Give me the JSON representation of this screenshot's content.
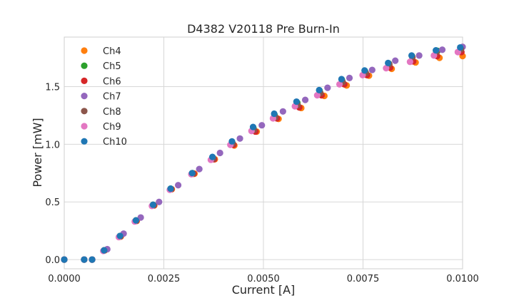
{
  "chart_data": {
    "type": "scatter",
    "title": "D4382 V20118 Pre Burn-In",
    "xlabel": "Current [A]",
    "ylabel": "Power [mW]",
    "xlim": [
      0.0,
      0.01
    ],
    "ylim": [
      -0.08,
      1.93
    ],
    "xticks": [
      0.0,
      0.0025,
      0.005,
      0.0075,
      0.01
    ],
    "xtick_labels": [
      "0.0000",
      "0.0025",
      "0.0050",
      "0.0075",
      "0.0100"
    ],
    "yticks": [
      0.0,
      0.5,
      1.0,
      1.5
    ],
    "ytick_labels": [
      "0.0",
      "0.5",
      "1.0",
      "1.5"
    ],
    "grid": true,
    "legend_position": "top-left",
    "series": [
      {
        "name": "Ch4",
        "color": "#ff7f0e",
        "points": [
          [
            0.0,
            0.0
          ],
          [
            0.0005,
            0.0
          ],
          [
            0.0007,
            0.0
          ],
          [
            0.00102,
            0.08
          ],
          [
            0.00142,
            0.2
          ],
          [
            0.00182,
            0.335
          ],
          [
            0.00226,
            0.47
          ],
          [
            0.0027,
            0.61
          ],
          [
            0.00327,
            0.745
          ],
          [
            0.00378,
            0.87
          ],
          [
            0.00427,
            0.99
          ],
          [
            0.00483,
            1.11
          ],
          [
            0.00538,
            1.22
          ],
          [
            0.00595,
            1.315
          ],
          [
            0.00653,
            1.42
          ],
          [
            0.00709,
            1.51
          ],
          [
            0.00765,
            1.595
          ],
          [
            0.00822,
            1.655
          ],
          [
            0.00882,
            1.71
          ],
          [
            0.00942,
            1.75
          ],
          [
            0.01,
            1.765
          ]
        ]
      },
      {
        "name": "Ch5",
        "color": "#2ca02c",
        "points": [
          [
            0.0,
            0.0
          ],
          [
            0.0005,
            0.0
          ],
          [
            0.0007,
            0.0
          ],
          [
            0.001,
            0.08
          ],
          [
            0.0014,
            0.205
          ],
          [
            0.0018,
            0.34
          ],
          [
            0.00223,
            0.475
          ],
          [
            0.00267,
            0.615
          ],
          [
            0.00322,
            0.75
          ],
          [
            0.00373,
            0.885
          ],
          [
            0.00422,
            1.015
          ],
          [
            0.00475,
            1.14
          ],
          [
            0.00528,
            1.255
          ],
          [
            0.00585,
            1.36
          ],
          [
            0.00641,
            1.465
          ],
          [
            0.00697,
            1.56
          ],
          [
            0.00755,
            1.635
          ],
          [
            0.00815,
            1.7
          ],
          [
            0.00873,
            1.765
          ],
          [
            0.00937,
            1.81
          ],
          [
            0.00995,
            1.835
          ]
        ]
      },
      {
        "name": "Ch6",
        "color": "#d62728",
        "points": [
          [
            0.0,
            0.0
          ],
          [
            0.0005,
            0.0
          ],
          [
            0.0007,
            0.0
          ],
          [
            0.00101,
            0.08
          ],
          [
            0.00141,
            0.2
          ],
          [
            0.00181,
            0.335
          ],
          [
            0.00225,
            0.47
          ],
          [
            0.00269,
            0.61
          ],
          [
            0.00325,
            0.745
          ],
          [
            0.00376,
            0.87
          ],
          [
            0.00425,
            0.995
          ],
          [
            0.0048,
            1.11
          ],
          [
            0.00534,
            1.225
          ],
          [
            0.0059,
            1.32
          ],
          [
            0.00646,
            1.425
          ],
          [
            0.00703,
            1.52
          ],
          [
            0.0076,
            1.6
          ],
          [
            0.00818,
            1.665
          ],
          [
            0.00876,
            1.72
          ],
          [
            0.00936,
            1.765
          ],
          [
            0.00997,
            1.8
          ]
        ]
      },
      {
        "name": "Ch7",
        "color": "#9467bd",
        "points": [
          [
            0.0,
            0.0
          ],
          [
            0.0005,
            0.0
          ],
          [
            0.0007,
            0.0
          ],
          [
            0.00108,
            0.09
          ],
          [
            0.00149,
            0.225
          ],
          [
            0.00192,
            0.365
          ],
          [
            0.00238,
            0.5
          ],
          [
            0.00286,
            0.645
          ],
          [
            0.00339,
            0.785
          ],
          [
            0.00391,
            0.925
          ],
          [
            0.00441,
            1.05
          ],
          [
            0.00496,
            1.165
          ],
          [
            0.00549,
            1.285
          ],
          [
            0.00605,
            1.385
          ],
          [
            0.00661,
            1.49
          ],
          [
            0.00716,
            1.575
          ],
          [
            0.00773,
            1.645
          ],
          [
            0.00831,
            1.725
          ],
          [
            0.00891,
            1.77
          ],
          [
            0.00949,
            1.82
          ],
          [
            0.01,
            1.845
          ]
        ]
      },
      {
        "name": "Ch8",
        "color": "#8c564b",
        "points": [
          [
            0.0,
            0.0
          ],
          [
            0.0005,
            0.0
          ],
          [
            0.0007,
            0.0
          ],
          [
            0.001,
            0.08
          ],
          [
            0.0014,
            0.2
          ],
          [
            0.0018,
            0.335
          ],
          [
            0.00224,
            0.47
          ],
          [
            0.00268,
            0.61
          ],
          [
            0.00323,
            0.745
          ],
          [
            0.00374,
            0.875
          ],
          [
            0.00423,
            1.005
          ],
          [
            0.00476,
            1.125
          ],
          [
            0.0053,
            1.235
          ],
          [
            0.00586,
            1.34
          ],
          [
            0.00643,
            1.445
          ],
          [
            0.00699,
            1.54
          ],
          [
            0.00757,
            1.62
          ],
          [
            0.00816,
            1.695
          ],
          [
            0.00874,
            1.755
          ],
          [
            0.00934,
            1.8
          ],
          [
            0.00996,
            1.825
          ]
        ]
      },
      {
        "name": "Ch9",
        "color": "#e377c2",
        "points": [
          [
            0.0,
            0.0
          ],
          [
            0.0005,
            0.0
          ],
          [
            0.0007,
            0.0
          ],
          [
            0.00098,
            0.075
          ],
          [
            0.00137,
            0.195
          ],
          [
            0.00177,
            0.33
          ],
          [
            0.0022,
            0.465
          ],
          [
            0.00265,
            0.605
          ],
          [
            0.00319,
            0.74
          ],
          [
            0.00368,
            0.865
          ],
          [
            0.00417,
            0.995
          ],
          [
            0.0047,
            1.115
          ],
          [
            0.00524,
            1.225
          ],
          [
            0.00579,
            1.33
          ],
          [
            0.00635,
            1.425
          ],
          [
            0.00691,
            1.52
          ],
          [
            0.00749,
            1.6
          ],
          [
            0.00808,
            1.66
          ],
          [
            0.00868,
            1.715
          ],
          [
            0.00928,
            1.77
          ],
          [
            0.00988,
            1.8
          ]
        ]
      },
      {
        "name": "Ch10",
        "color": "#1f77b4",
        "points": [
          [
            0.0,
            0.0
          ],
          [
            0.0005,
            0.0
          ],
          [
            0.0007,
            0.0
          ],
          [
            0.001,
            0.08
          ],
          [
            0.0014,
            0.205
          ],
          [
            0.0018,
            0.34
          ],
          [
            0.00223,
            0.475
          ],
          [
            0.00267,
            0.615
          ],
          [
            0.00321,
            0.75
          ],
          [
            0.00372,
            0.89
          ],
          [
            0.00421,
            1.025
          ],
          [
            0.00474,
            1.15
          ],
          [
            0.00527,
            1.265
          ],
          [
            0.00583,
            1.37
          ],
          [
            0.0064,
            1.47
          ],
          [
            0.00696,
            1.565
          ],
          [
            0.00754,
            1.64
          ],
          [
            0.00813,
            1.705
          ],
          [
            0.00872,
            1.77
          ],
          [
            0.00933,
            1.815
          ],
          [
            0.00994,
            1.84
          ]
        ]
      }
    ]
  }
}
